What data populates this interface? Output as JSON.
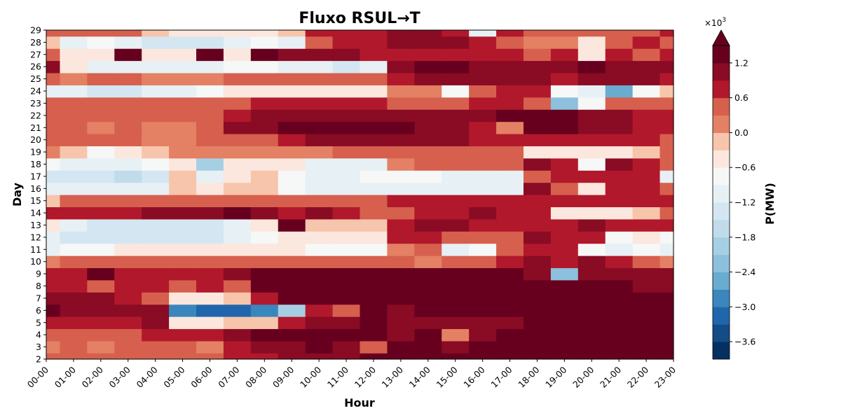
{
  "chart_data": {
    "type": "heatmap",
    "title": "Fluxo RSUL→T",
    "xlabel": "Hour",
    "ylabel": "Day",
    "x_ticks": [
      "00-00",
      "01-00",
      "02-00",
      "03-00",
      "04-00",
      "05-00",
      "06-00",
      "07-00",
      "08-00",
      "09-00",
      "10-00",
      "11-00",
      "12-00",
      "13-00",
      "14-00",
      "15-00",
      "16-00",
      "17-00",
      "18-00",
      "19-00",
      "20-00",
      "21-00",
      "22-00",
      "23-00"
    ],
    "y_ticks": [
      "2",
      "3",
      "4",
      "5",
      "6",
      "7",
      "8",
      "9",
      "10",
      "11",
      "12",
      "13",
      "14",
      "15",
      "16",
      "17",
      "18",
      "19",
      "20",
      "21",
      "22",
      "23",
      "24",
      "25",
      "26",
      "27",
      "28",
      "29"
    ],
    "colorbar": {
      "label": "P(MW)",
      "multiplier": "×10",
      "multiplier_exp": "3",
      "tick_labels": [
        "−3.6",
        "−3.0",
        "−2.4",
        "−1.8",
        "−1.2",
        "−0.6",
        "0.0",
        "0.6",
        "1.2"
      ],
      "tick_values": [
        -3.6,
        -3.0,
        -2.4,
        -1.8,
        -1.2,
        -0.6,
        0.0,
        0.6,
        1.2
      ],
      "range": [
        -3.9,
        1.5
      ],
      "extend": "max",
      "colormap": "RdBu_r",
      "level_colors": [
        "#053061",
        "#134c87",
        "#2166ac",
        "#3a87bd",
        "#6aabd0",
        "#8dc0dc",
        "#a7cfe4",
        "#c0dceb",
        "#d4e6f1",
        "#e7f0f4",
        "#f6f7f7",
        "#fbe7dd",
        "#f7c5ab",
        "#e48064",
        "#d6604d",
        "#b2182b",
        "#8a0b24",
        "#67001f"
      ],
      "level_bounds": [
        -3.9,
        -3.6,
        -3.3,
        -3.0,
        -2.7,
        -2.4,
        -2.1,
        -1.8,
        -1.5,
        -1.2,
        -0.9,
        -0.6,
        -0.3,
        0.0,
        0.3,
        0.6,
        0.9,
        1.2,
        1.5
      ]
    },
    "z_unit": "MW ×10^3",
    "rows": [
      {
        "day": 2,
        "z": [
          0.5,
          0.4,
          0.5,
          0.4,
          0.4,
          0.4,
          0.5,
          0.7,
          0.8,
          0.9,
          1.0,
          1.1,
          1.2,
          1.3,
          1.3,
          1.2,
          1.3,
          1.3,
          1.4,
          1.4,
          1.4,
          1.3,
          1.2,
          1.2
        ]
      },
      {
        "day": 3,
        "z": [
          0.2,
          0.3,
          0.1,
          0.4,
          0.4,
          0.4,
          0.2,
          0.7,
          0.9,
          1.1,
          1.3,
          1.1,
          0.3,
          1.2,
          1.2,
          1.1,
          1.2,
          1.3,
          1.4,
          1.4,
          1.4,
          1.3,
          1.2,
          1.2
        ]
      },
      {
        "day": 4,
        "z": [
          0.4,
          0.5,
          0.5,
          0.5,
          0.6,
          0.6,
          0.6,
          1.0,
          1.3,
          1.5,
          1.5,
          1.4,
          1.2,
          1.1,
          1.2,
          0.1,
          1.1,
          1.2,
          1.3,
          1.4,
          1.4,
          1.3,
          1.3,
          1.3
        ]
      },
      {
        "day": 5,
        "z": [
          0.7,
          0.8,
          0.8,
          0.8,
          0.9,
          -0.4,
          -0.4,
          -0.3,
          -0.3,
          0.8,
          1.0,
          1.1,
          1.2,
          1.1,
          1.0,
          0.9,
          1.0,
          1.1,
          1.3,
          1.4,
          1.3,
          1.2,
          1.2,
          1.3
        ]
      },
      {
        "day": 6,
        "z": [
          1.3,
          0.9,
          0.9,
          0.9,
          0.9,
          -3.0,
          -3.3,
          -3.3,
          -3.0,
          -2.0,
          0.7,
          0.3,
          1.2,
          1.1,
          1.2,
          1.2,
          1.3,
          1.4,
          1.4,
          1.5,
          1.5,
          1.4,
          1.4,
          1.4
        ]
      },
      {
        "day": 7,
        "z": [
          0.9,
          0.9,
          0.9,
          0.8,
          0.5,
          -0.5,
          -0.5,
          -0.3,
          0.6,
          1.2,
          1.2,
          1.3,
          1.3,
          1.2,
          1.3,
          1.2,
          1.2,
          1.3,
          1.3,
          1.3,
          1.3,
          1.3,
          1.3,
          1.2
        ]
      },
      {
        "day": 8,
        "z": [
          0.8,
          0.8,
          0.5,
          0.8,
          0.8,
          0.5,
          0.8,
          0.3,
          1.4,
          1.4,
          1.3,
          1.3,
          1.3,
          1.4,
          1.3,
          1.3,
          1.4,
          1.3,
          1.2,
          1.3,
          1.2,
          1.2,
          1.1,
          1.0
        ]
      },
      {
        "day": 9,
        "z": [
          0.7,
          0.8,
          1.2,
          0.8,
          0.8,
          0.8,
          0.8,
          1.0,
          1.3,
          1.4,
          1.3,
          1.3,
          1.2,
          1.3,
          1.3,
          1.2,
          1.2,
          1.2,
          1.1,
          -2.4,
          1.0,
          1.0,
          0.9,
          0.9
        ]
      },
      {
        "day": 10,
        "z": [
          0.2,
          0.3,
          0.3,
          0.3,
          0.3,
          0.3,
          0.3,
          0.3,
          0.4,
          0.4,
          0.4,
          0.4,
          0.4,
          0.4,
          0.2,
          0.4,
          0.5,
          0.8,
          0.9,
          0.7,
          0.9,
          0.7,
          0.5,
          0.2
        ]
      },
      {
        "day": 11,
        "z": [
          -1.1,
          -0.9,
          -0.8,
          -0.6,
          -0.6,
          -0.5,
          -0.5,
          -0.5,
          -0.4,
          -0.6,
          -0.7,
          -0.7,
          -0.8,
          0.2,
          0.3,
          -1.1,
          -0.8,
          0.3,
          0.8,
          0.6,
          -0.7,
          -1.0,
          -0.8,
          -1.2
        ]
      },
      {
        "day": 12,
        "z": [
          -1.0,
          -1.3,
          -1.4,
          -1.4,
          -1.4,
          -1.5,
          -1.4,
          -1.2,
          -0.9,
          -0.6,
          -0.5,
          -0.5,
          -0.4,
          0.6,
          0.6,
          0.4,
          0.5,
          0.5,
          1.0,
          0.8,
          0.7,
          -0.8,
          -0.6,
          -0.7
        ]
      },
      {
        "day": 13,
        "z": [
          -0.4,
          -1.0,
          -1.3,
          -1.3,
          -1.4,
          -1.4,
          -1.3,
          -1.0,
          -0.6,
          1.3,
          -0.3,
          -0.2,
          -0.2,
          0.6,
          1.0,
          1.1,
          0.8,
          0.7,
          0.6,
          0.6,
          1.0,
          0.8,
          0.6,
          0.6
        ]
      },
      {
        "day": 14,
        "z": [
          0.8,
          0.8,
          0.8,
          0.8,
          0.9,
          0.9,
          1.0,
          1.3,
          1.0,
          0.8,
          0.9,
          0.8,
          0.3,
          0.3,
          0.7,
          0.6,
          1.0,
          0.6,
          0.8,
          -0.5,
          -0.6,
          -0.4,
          -0.3,
          0.5
        ]
      },
      {
        "day": 15,
        "z": [
          -0.2,
          0.4,
          0.4,
          0.4,
          0.4,
          0.4,
          0.4,
          0.4,
          0.4,
          0.5,
          0.5,
          0.5,
          0.5,
          0.6,
          0.6,
          0.6,
          0.8,
          0.6,
          0.8,
          0.6,
          0.6,
          0.6,
          0.6,
          0.6
        ]
      },
      {
        "day": 16,
        "z": [
          -1.2,
          -1.1,
          -1.1,
          -1.2,
          -1.1,
          -0.3,
          -0.6,
          -0.3,
          -0.3,
          -0.7,
          -1.0,
          -1.1,
          -1.2,
          -1.1,
          -1.2,
          -1.2,
          -1.2,
          -1.0,
          0.9,
          0.5,
          -0.6,
          0.6,
          0.8,
          0.5
        ]
      },
      {
        "day": 17,
        "z": [
          -1.5,
          -1.5,
          -1.5,
          -1.6,
          -1.4,
          -0.3,
          -1.2,
          -0.4,
          -0.3,
          -0.8,
          -1.1,
          -1.1,
          -0.7,
          -0.7,
          -0.9,
          -1.0,
          -1.1,
          -1.0,
          0.3,
          0.7,
          0.8,
          0.8,
          0.6,
          -1.2
        ]
      },
      {
        "day": 18,
        "z": [
          -0.8,
          -1.2,
          -1.1,
          -1.1,
          -0.8,
          -0.5,
          -2.0,
          -0.6,
          -0.4,
          -0.5,
          -1.0,
          -1.1,
          -1.0,
          0.2,
          0.3,
          0.3,
          0.5,
          0.5,
          1.0,
          0.8,
          -0.9,
          1.0,
          0.7,
          0.5
        ]
      },
      {
        "day": 19,
        "z": [
          0.1,
          -0.3,
          -0.9,
          -0.5,
          -0.3,
          0.1,
          0.2,
          0.2,
          0.2,
          0.2,
          0.2,
          0.3,
          0.3,
          0.3,
          0.3,
          0.3,
          0.4,
          0.4,
          -0.4,
          -0.6,
          -0.5,
          -0.4,
          -0.3,
          0.3
        ]
      },
      {
        "day": 20,
        "z": [
          0.5,
          0.4,
          0.4,
          0.3,
          0.1,
          0.2,
          0.3,
          0.4,
          0.4,
          0.8,
          0.9,
          1.0,
          1.1,
          1.0,
          1.0,
          0.9,
          0.8,
          0.7,
          0.8,
          0.7,
          0.6,
          0.6,
          0.6,
          0.5
        ]
      },
      {
        "day": 21,
        "z": [
          0.4,
          0.4,
          0.1,
          0.4,
          0.1,
          0.1,
          0.3,
          0.9,
          1.0,
          1.2,
          1.2,
          1.2,
          1.2,
          1.2,
          1.1,
          1.0,
          0.8,
          0.1,
          1.2,
          1.4,
          0.9,
          0.9,
          0.8,
          0.7
        ]
      },
      {
        "day": 22,
        "z": [
          0.4,
          0.4,
          0.4,
          0.4,
          0.4,
          0.4,
          0.4,
          0.8,
          1.0,
          1.1,
          1.1,
          1.0,
          1.0,
          1.0,
          0.9,
          0.9,
          1.0,
          1.3,
          1.3,
          1.3,
          1.0,
          0.9,
          0.8,
          0.7
        ]
      },
      {
        "day": 23,
        "z": [
          0.3,
          0.3,
          0.3,
          0.3,
          0.3,
          0.4,
          0.4,
          0.5,
          0.6,
          0.7,
          0.7,
          0.6,
          0.6,
          0.5,
          0.5,
          0.5,
          0.6,
          0.8,
          0.4,
          -2.4,
          -0.9,
          0.4,
          0.3,
          0.3
        ]
      },
      {
        "day": 24,
        "z": [
          -1.0,
          -1.2,
          -1.3,
          -1.3,
          -1.2,
          -1.0,
          -0.9,
          -0.6,
          -0.5,
          -0.5,
          -0.4,
          -0.4,
          -0.4,
          0.1,
          0.1,
          -0.8,
          0.4,
          0.6,
          0.8,
          -0.8,
          -1.0,
          -2.6,
          -0.8,
          -0.3
        ]
      },
      {
        "day": 25,
        "z": [
          0.3,
          0.2,
          0.3,
          0.3,
          0.2,
          0.2,
          0.2,
          0.3,
          0.3,
          0.4,
          0.4,
          0.4,
          0.5,
          0.7,
          0.9,
          1.0,
          1.0,
          1.1,
          0.9,
          0.8,
          0.9,
          1.0,
          0.9,
          0.8
        ]
      },
      {
        "day": 26,
        "z": [
          0.9,
          -0.6,
          -1.0,
          -1.1,
          -1.2,
          -1.2,
          -1.2,
          -0.9,
          -0.9,
          -1.0,
          -1.2,
          -1.3,
          -1.2,
          0.9,
          1.2,
          1.4,
          1.1,
          1.1,
          1.0,
          1.0,
          1.2,
          1.1,
          0.9,
          0.9
        ]
      },
      {
        "day": 27,
        "z": [
          0.4,
          -0.4,
          -0.4,
          1.3,
          -0.6,
          -0.5,
          1.3,
          -0.4,
          1.2,
          1.0,
          1.0,
          1.1,
          0.8,
          0.8,
          0.8,
          0.8,
          0.7,
          0.6,
          0.5,
          0.6,
          -0.4,
          0.6,
          0.5,
          0.6
        ]
      },
      {
        "day": 28,
        "z": [
          -0.3,
          -1.1,
          -0.8,
          -1.0,
          -1.3,
          -1.4,
          -1.3,
          -1.2,
          -0.8,
          -1.0,
          0.5,
          0.6,
          0.8,
          0.9,
          1.0,
          0.9,
          0.7,
          0.3,
          0.1,
          0.2,
          -0.6,
          0.5,
          0.6,
          0.5
        ]
      },
      {
        "day": 29,
        "z": [
          0.4,
          0.5,
          0.4,
          0.3,
          -0.3,
          -0.4,
          -0.5,
          -0.6,
          -0.4,
          -0.2,
          0.6,
          0.7,
          0.8,
          1.0,
          0.9,
          0.8,
          -1.0,
          0.6,
          0.4,
          0.4,
          0.5,
          0.5,
          0.5,
          0.6
        ]
      }
    ]
  }
}
